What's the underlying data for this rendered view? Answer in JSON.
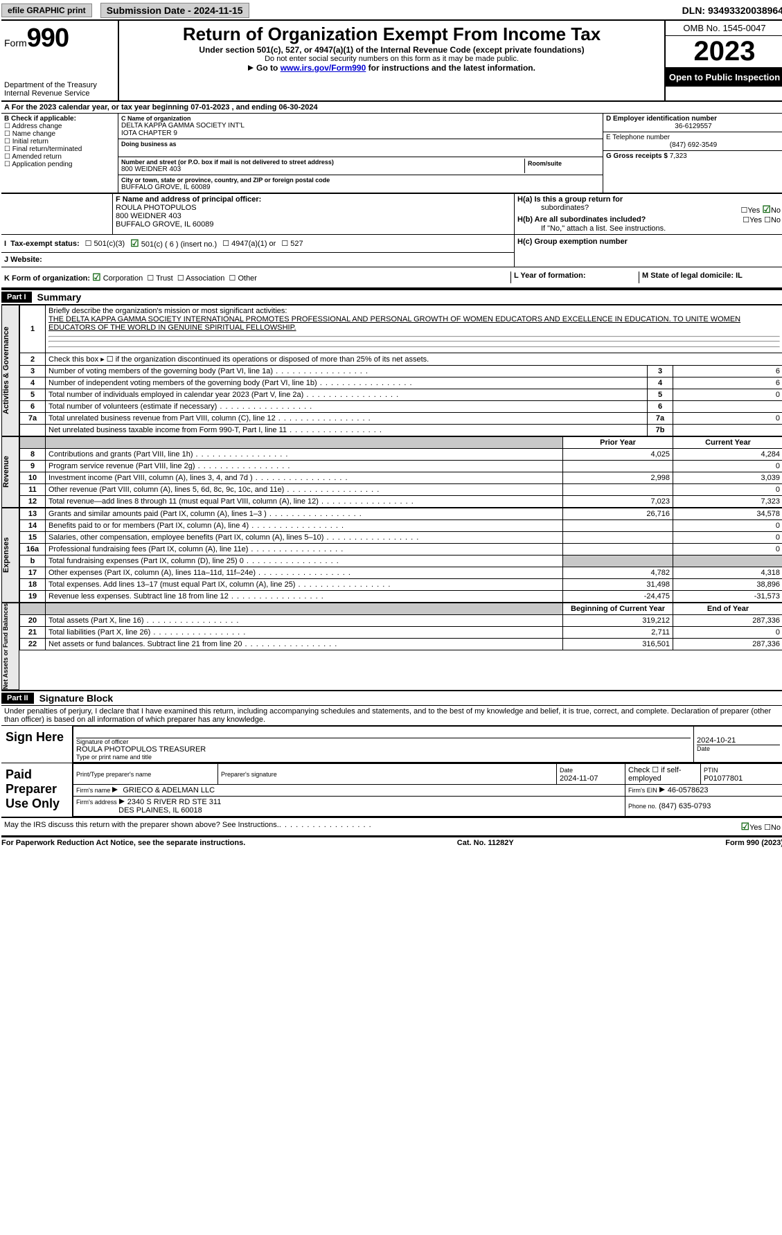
{
  "topbar": {
    "efile": "efile GRAPHIC print",
    "submission": "Submission Date - 2024-11-15",
    "dln": "DLN: 93493320038964"
  },
  "header": {
    "form_label": "Form",
    "form_num": "990",
    "dept": "Department of the Treasury",
    "irs": "Internal Revenue Service",
    "title": "Return of Organization Exempt From Income Tax",
    "sub1": "Under section 501(c), 527, or 4947(a)(1) of the Internal Revenue Code (except private foundations)",
    "sub2": "Do not enter social security numbers on this form as it may be made public.",
    "sub3_pre": "Go to ",
    "sub3_link": "www.irs.gov/Form990",
    "sub3_post": " for instructions and the latest information.",
    "omb": "OMB No. 1545-0047",
    "year": "2023",
    "open": "Open to Public Inspection"
  },
  "rowA": "A  For the 2023 calendar year, or tax year beginning 07-01-2023   , and ending 06-30-2024",
  "boxB": {
    "title": "B Check if applicable:",
    "items": [
      "Address change",
      "Name change",
      "Initial return",
      "Final return/terminated",
      "Amended return",
      "Application pending"
    ]
  },
  "boxC": {
    "name_lbl": "C Name of organization",
    "name1": "DELTA KAPPA GAMMA SOCIETY INT'L",
    "name2": "IOTA CHAPTER 9",
    "dba_lbl": "Doing business as",
    "addr_lbl": "Number and street (or P.O. box if mail is not delivered to street address)",
    "addr": "800 WEIDNER 403",
    "room_lbl": "Room/suite",
    "city_lbl": "City or town, state or province, country, and ZIP or foreign postal code",
    "city": "BUFFALO GROVE, IL  60089"
  },
  "boxD": {
    "ein_lbl": "D Employer identification number",
    "ein": "36-6129557",
    "tel_lbl": "E Telephone number",
    "tel": "(847) 692-3549",
    "gross_lbl": "G Gross receipts $",
    "gross": "7,323"
  },
  "boxF": {
    "lbl": "F Name and address of principal officer:",
    "l1": "ROULA PHOTOPULOS",
    "l2": "800 WEIDNER 403",
    "l3": "BUFFALO GROVE, IL  60089"
  },
  "boxH": {
    "ha": "H(a)  Is this a group return for",
    "ha2": "subordinates?",
    "hb": "H(b)  Are all subordinates included?",
    "hb2": "If \"No,\" attach a list. See instructions.",
    "hc": "H(c)  Group exemption number",
    "yes": "Yes",
    "no": "No"
  },
  "rowI": {
    "lbl": "Tax-exempt status:",
    "o1": "501(c)(3)",
    "o2": "501(c) ( 6 ) (insert no.)",
    "o3": "4947(a)(1) or",
    "o4": "527"
  },
  "rowJ": {
    "lbl": "J   Website:"
  },
  "rowK": {
    "lbl": "K Form of organization:",
    "o1": "Corporation",
    "o2": "Trust",
    "o3": "Association",
    "o4": "Other",
    "Llbl": "L Year of formation:",
    "Mlbl": "M State of legal domicile: IL"
  },
  "part1": {
    "hdr": "Part I",
    "title": "Summary",
    "side_ag": "Activities & Governance",
    "side_rev": "Revenue",
    "side_exp": "Expenses",
    "side_net": "Net Assets or Fund Balances",
    "l1a": "Briefly describe the organization's mission or most significant activities:",
    "l1b": "THE DELTA KAPPA GAMMA SOCIETY INTERNATIONAL PROMOTES PROFESSIONAL AND PERSONAL GROWTH OF WOMEN EDUCATORS AND EXCELLENCE IN EDUCATION. TO UNITE WOMEN EDUCATORS OF THE WORLD IN GENUINE SPIRITUAL FELLOWSHIP.",
    "l2": "Check this box ▸ ☐ if the organization discontinued its operations or disposed of more than 25% of its net assets.",
    "rows_ag": [
      {
        "n": "3",
        "t": "Number of voting members of the governing body (Part VI, line 1a)",
        "k": "3",
        "v": "6"
      },
      {
        "n": "4",
        "t": "Number of independent voting members of the governing body (Part VI, line 1b)",
        "k": "4",
        "v": "6"
      },
      {
        "n": "5",
        "t": "Total number of individuals employed in calendar year 2023 (Part V, line 2a)",
        "k": "5",
        "v": "0"
      },
      {
        "n": "6",
        "t": "Total number of volunteers (estimate if necessary)",
        "k": "6",
        "v": ""
      },
      {
        "n": "7a",
        "t": "Total unrelated business revenue from Part VIII, column (C), line 12",
        "k": "7a",
        "v": "0"
      },
      {
        "n": "",
        "t": "Net unrelated business taxable income from Form 990-T, Part I, line 11",
        "k": "7b",
        "v": ""
      }
    ],
    "col_prior": "Prior Year",
    "col_curr": "Current Year",
    "col_begin": "Beginning of Current Year",
    "col_end": "End of Year",
    "rows_rev": [
      {
        "n": "8",
        "t": "Contributions and grants (Part VIII, line 1h)",
        "p": "4,025",
        "c": "4,284"
      },
      {
        "n": "9",
        "t": "Program service revenue (Part VIII, line 2g)",
        "p": "",
        "c": "0"
      },
      {
        "n": "10",
        "t": "Investment income (Part VIII, column (A), lines 3, 4, and 7d )",
        "p": "2,998",
        "c": "3,039"
      },
      {
        "n": "11",
        "t": "Other revenue (Part VIII, column (A), lines 5, 6d, 8c, 9c, 10c, and 11e)",
        "p": "",
        "c": "0"
      },
      {
        "n": "12",
        "t": "Total revenue—add lines 8 through 11 (must equal Part VIII, column (A), line 12)",
        "p": "7,023",
        "c": "7,323"
      }
    ],
    "rows_exp": [
      {
        "n": "13",
        "t": "Grants and similar amounts paid (Part IX, column (A), lines 1–3 )",
        "p": "26,716",
        "c": "34,578"
      },
      {
        "n": "14",
        "t": "Benefits paid to or for members (Part IX, column (A), line 4)",
        "p": "",
        "c": "0"
      },
      {
        "n": "15",
        "t": "Salaries, other compensation, employee benefits (Part IX, column (A), lines 5–10)",
        "p": "",
        "c": "0"
      },
      {
        "n": "16a",
        "t": "Professional fundraising fees (Part IX, column (A), line 11e)",
        "p": "",
        "c": "0"
      },
      {
        "n": "b",
        "t": "Total fundraising expenses (Part IX, column (D), line 25) 0",
        "p": "SHADE",
        "c": "SHADE"
      },
      {
        "n": "17",
        "t": "Other expenses (Part IX, column (A), lines 11a–11d, 11f–24e)",
        "p": "4,782",
        "c": "4,318"
      },
      {
        "n": "18",
        "t": "Total expenses. Add lines 13–17 (must equal Part IX, column (A), line 25)",
        "p": "31,498",
        "c": "38,896"
      },
      {
        "n": "19",
        "t": "Revenue less expenses. Subtract line 18 from line 12",
        "p": "-24,475",
        "c": "-31,573"
      }
    ],
    "rows_net": [
      {
        "n": "20",
        "t": "Total assets (Part X, line 16)",
        "p": "319,212",
        "c": "287,336"
      },
      {
        "n": "21",
        "t": "Total liabilities (Part X, line 26)",
        "p": "2,711",
        "c": "0"
      },
      {
        "n": "22",
        "t": "Net assets or fund balances. Subtract line 21 from line 20",
        "p": "316,501",
        "c": "287,336"
      }
    ]
  },
  "part2": {
    "hdr": "Part II",
    "title": "Signature Block",
    "decl": "Under penalties of perjury, I declare that I have examined this return, including accompanying schedules and statements, and to the best of my knowledge and belief, it is true, correct, and complete. Declaration of preparer (other than officer) is based on all information of which preparer has any knowledge.",
    "sign_here": "Sign Here",
    "sig_officer": "Signature of officer",
    "sig_name": "ROULA PHOTOPULOS  TREASURER",
    "sig_type": "Type or print name and title",
    "sig_date_lbl": "Date",
    "sig_date": "2024-10-21",
    "paid": "Paid Preparer Use Only",
    "prep_name_lbl": "Print/Type preparer's name",
    "prep_sig_lbl": "Preparer's signature",
    "prep_date": "2024-11-07",
    "prep_check": "Check ☐ if self-employed",
    "ptin_lbl": "PTIN",
    "ptin": "P01077801",
    "firm_name_lbl": "Firm's name",
    "firm_name": "GRIECO & ADELMAN LLC",
    "firm_ein_lbl": "Firm's EIN",
    "firm_ein": "46-0578623",
    "firm_addr_lbl": "Firm's address",
    "firm_addr1": "2340 S RIVER RD STE 311",
    "firm_addr2": "DES PLAINES, IL  60018",
    "phone_lbl": "Phone no.",
    "phone": "(847) 635-0793",
    "discuss": "May the IRS discuss this return with the preparer shown above? See Instructions."
  },
  "footer": {
    "pra": "For Paperwork Reduction Act Notice, see the separate instructions.",
    "cat": "Cat. No. 11282Y",
    "form": "Form 990 (2023)"
  }
}
